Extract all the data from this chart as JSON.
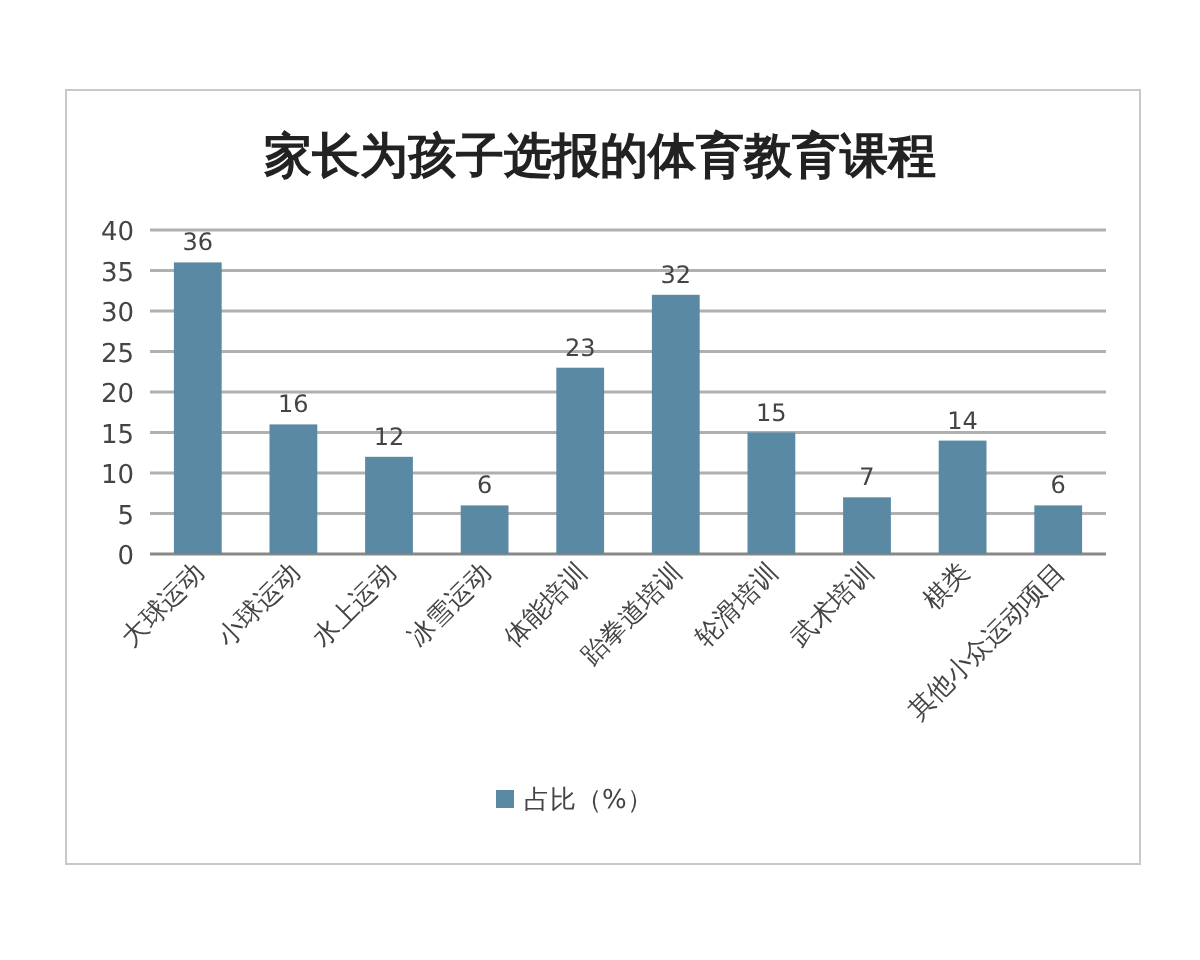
{
  "chart_data": {
    "type": "bar",
    "title": "家长为孩子选报的体育教育课程",
    "categories": [
      "大球运动",
      "小球运动",
      "水上运动",
      "冰雪运动",
      "体能培训",
      "跆拳道培训",
      "轮滑培训",
      "武术培训",
      "棋类",
      "其他小众运动项目"
    ],
    "series": [
      {
        "name": "占比（%）",
        "color": "#5a8aa3",
        "values": [
          36,
          16,
          12,
          6,
          23,
          32,
          15,
          7,
          14,
          6
        ]
      }
    ],
    "ylim": [
      0,
      40
    ],
    "yticks": [
      0,
      5,
      10,
      15,
      20,
      25,
      30,
      35,
      40
    ],
    "grid": "y",
    "data_labels": true,
    "legend": "bottom"
  }
}
